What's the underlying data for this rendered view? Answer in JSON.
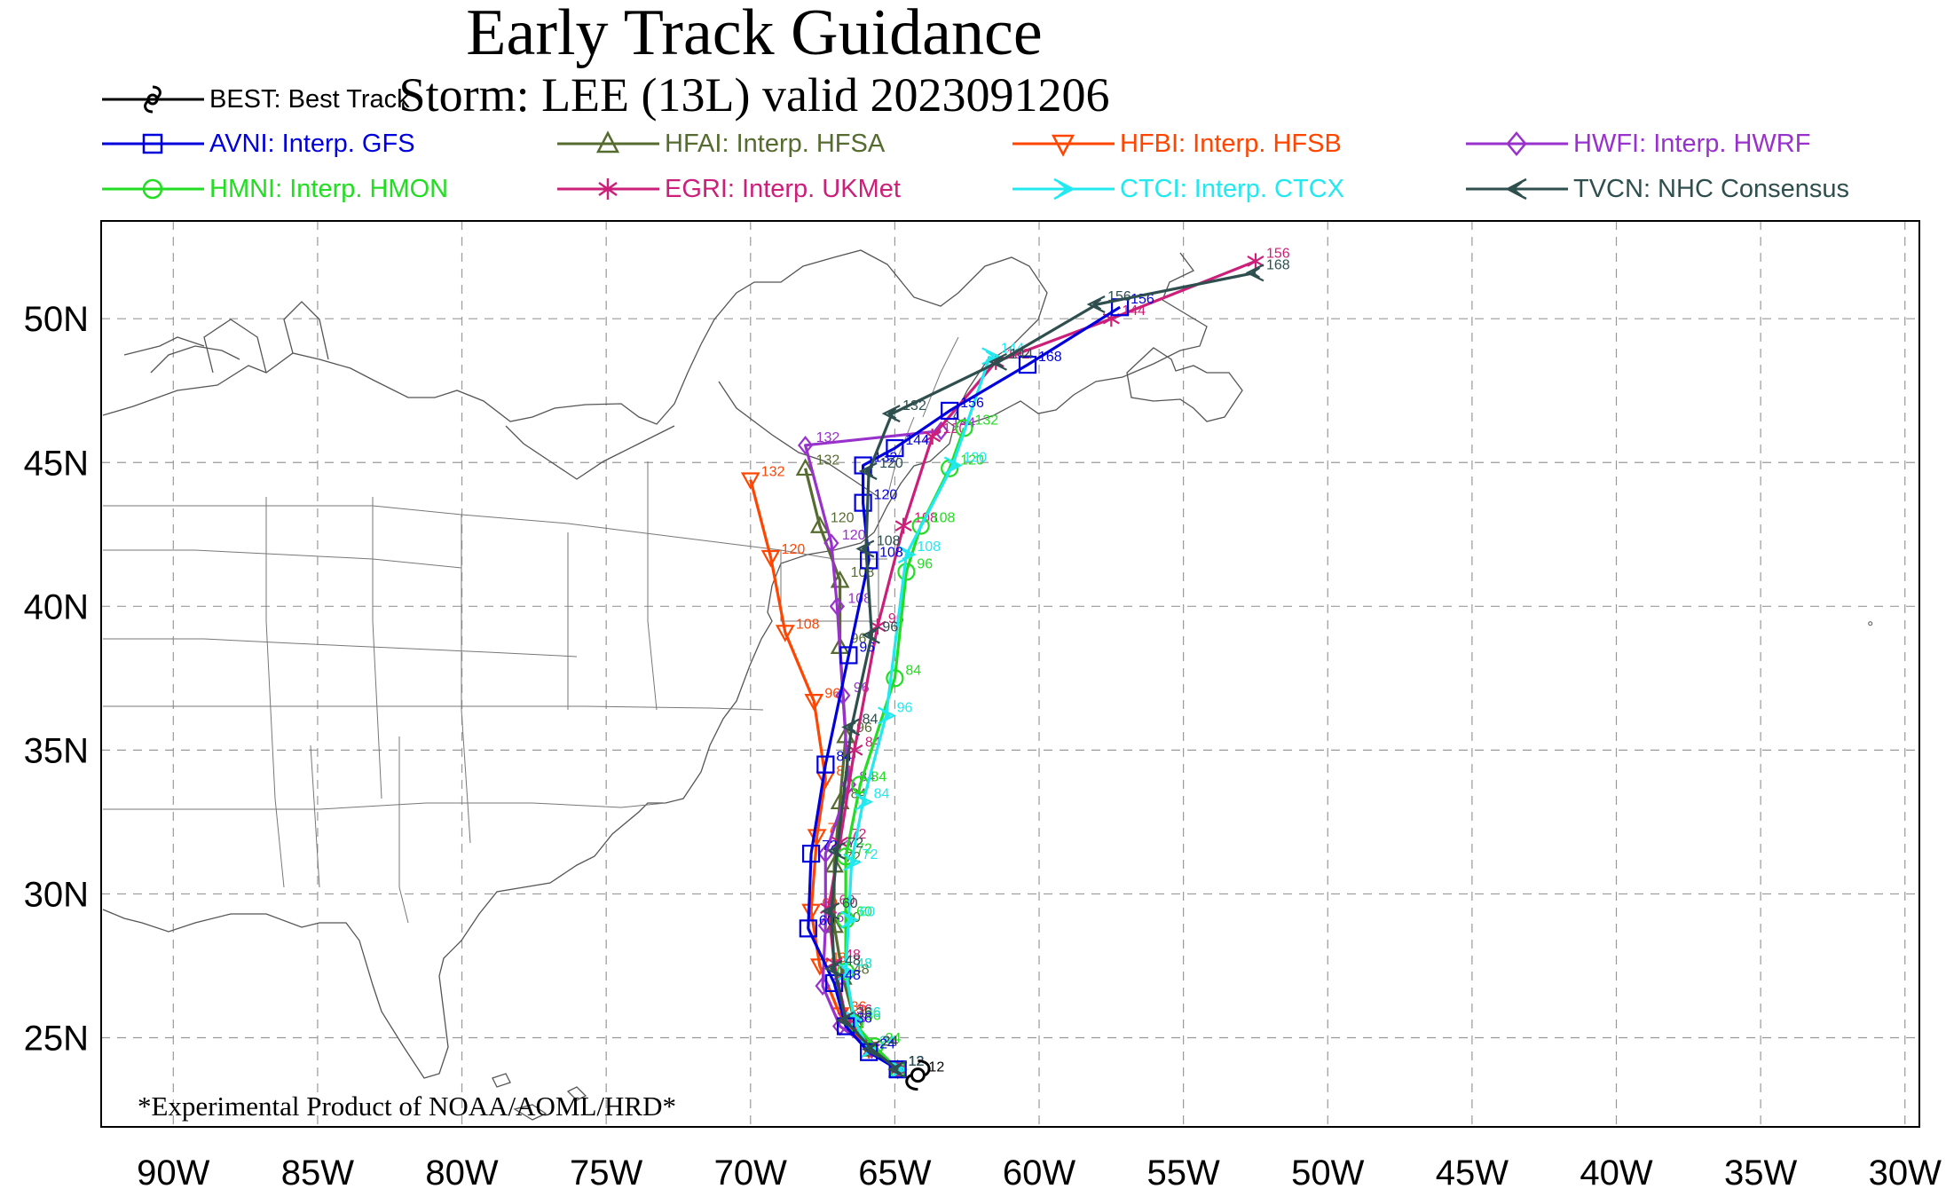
{
  "title": "Early Track Guidance",
  "subtitle": "Storm: LEE (13L) valid 2023091206",
  "footnote": "*Experimental Product of NOAA/AOML/HRD*",
  "colors": {
    "best": "#000000",
    "avni": "#0000dd",
    "hfai": "#556b2f",
    "hfbi": "#ff4500",
    "hwfi": "#9932cc",
    "hmni": "#22dd22",
    "egri": "#cc1f7a",
    "ctci": "#22e8f0",
    "tvcn": "#2f4f4f"
  },
  "legend": [
    {
      "id": "best",
      "label": "BEST: Best Track",
      "marker": "hurricane-icon"
    },
    {
      "id": "avni",
      "label": "AVNI: Interp. GFS",
      "marker": "square-icon"
    },
    {
      "id": "hfai",
      "label": "HFAI: Interp. HFSA",
      "marker": "triangle-up-icon"
    },
    {
      "id": "hfbi",
      "label": "HFBI: Interp. HFSB",
      "marker": "triangle-down-icon"
    },
    {
      "id": "hwfi",
      "label": "HWFI: Interp. HWRF",
      "marker": "diamond-icon"
    },
    {
      "id": "hmni",
      "label": "HMNI: Interp. HMON",
      "marker": "circle-icon"
    },
    {
      "id": "egri",
      "label": "EGRI: Interp. UKMet",
      "marker": "asterisk-icon"
    },
    {
      "id": "ctci",
      "label": "CTCI: Interp. CTCX",
      "marker": "arrow-right-icon"
    },
    {
      "id": "tvcn",
      "label": "TVCN: NHC Consensus",
      "marker": "arrow-left-icon"
    }
  ],
  "axes": {
    "lat_labels": [
      "25N",
      "30N",
      "35N",
      "40N",
      "45N",
      "50N"
    ],
    "lon_labels": [
      "90W",
      "85W",
      "80W",
      "75W",
      "70W",
      "65W",
      "60W",
      "55W",
      "50W",
      "45W",
      "40W",
      "35W",
      "30W"
    ],
    "lat_values": [
      25,
      30,
      35,
      40,
      45,
      50
    ],
    "lon_values": [
      -90,
      -85,
      -80,
      -75,
      -70,
      -65,
      -60,
      -55,
      -50,
      -45,
      -40,
      -35,
      -30
    ],
    "lon_range": [
      -92.5,
      -29.5
    ],
    "lat_range": [
      21.9,
      53.4
    ],
    "grid": "dashed"
  },
  "tracks": [
    {
      "id": "best",
      "points": [
        [
          -64.2,
          23.7,
          12
        ]
      ]
    },
    {
      "id": "avni",
      "points": [
        [
          -64.9,
          23.9,
          12
        ],
        [
          -65.9,
          24.5,
          24
        ],
        [
          -66.7,
          25.4,
          36
        ],
        [
          -67.1,
          26.9,
          48
        ],
        [
          -68.0,
          28.8,
          60
        ],
        [
          -67.9,
          31.4,
          72
        ],
        [
          -67.4,
          34.5,
          84
        ],
        [
          -66.6,
          38.3,
          96
        ],
        [
          -65.9,
          41.6,
          108
        ],
        [
          -66.1,
          43.6,
          120
        ],
        [
          -66.1,
          44.9,
          132
        ],
        [
          -65.0,
          45.5,
          144
        ],
        [
          -63.1,
          46.8,
          156
        ],
        [
          -60.4,
          48.4,
          168
        ],
        [
          -57.2,
          50.4,
          156
        ]
      ]
    },
    {
      "id": "hfai",
      "points": [
        [
          -64.9,
          23.9,
          12
        ],
        [
          -65.8,
          24.6,
          24
        ],
        [
          -66.4,
          25.6,
          36
        ],
        [
          -66.8,
          27.1,
          48
        ],
        [
          -67.1,
          28.9,
          60
        ],
        [
          -67.1,
          31.0,
          72
        ],
        [
          -66.9,
          33.2,
          84
        ],
        [
          -66.7,
          35.5,
          96
        ],
        [
          -66.9,
          38.6,
          96
        ],
        [
          -66.9,
          40.9,
          108
        ],
        [
          -67.6,
          42.8,
          120
        ],
        [
          -68.1,
          44.8,
          132
        ]
      ]
    },
    {
      "id": "hfbi",
      "points": [
        [
          -64.9,
          23.9,
          12
        ],
        [
          -65.9,
          24.6,
          24
        ],
        [
          -66.9,
          25.8,
          36
        ],
        [
          -67.6,
          27.5,
          48
        ],
        [
          -67.9,
          29.4,
          60
        ],
        [
          -67.7,
          32.0,
          72
        ],
        [
          -67.4,
          34.0,
          84
        ],
        [
          -67.8,
          36.7,
          96
        ],
        [
          -68.8,
          39.1,
          108
        ],
        [
          -69.3,
          41.7,
          120
        ],
        [
          -70.0,
          44.4,
          132
        ]
      ]
    },
    {
      "id": "hwfi",
      "points": [
        [
          -64.9,
          23.9,
          12
        ],
        [
          -65.8,
          24.6,
          24
        ],
        [
          -66.9,
          25.4,
          36
        ],
        [
          -67.5,
          26.8,
          48
        ],
        [
          -67.4,
          28.9,
          60
        ],
        [
          -67.4,
          31.4,
          72
        ],
        [
          -66.6,
          33.8,
          84
        ],
        [
          -66.8,
          36.9,
          96
        ],
        [
          -67.0,
          40.0,
          108
        ],
        [
          -67.2,
          42.2,
          120
        ],
        [
          -68.1,
          45.6,
          132
        ],
        [
          -63.4,
          46.1,
          144
        ]
      ]
    },
    {
      "id": "hmni",
      "points": [
        [
          -64.9,
          23.9,
          12
        ],
        [
          -65.7,
          24.7,
          24
        ],
        [
          -66.4,
          25.5,
          36
        ],
        [
          -66.7,
          27.3,
          48
        ],
        [
          -66.7,
          29.1,
          60
        ],
        [
          -66.7,
          31.3,
          72
        ],
        [
          -66.2,
          33.8,
          84
        ],
        [
          -65.0,
          37.5,
          84
        ],
        [
          -64.6,
          41.2,
          96
        ],
        [
          -64.1,
          42.8,
          108
        ],
        [
          -63.1,
          44.8,
          120
        ],
        [
          -62.6,
          46.2,
          132
        ]
      ]
    },
    {
      "id": "egri",
      "points": [
        [
          -64.9,
          23.9,
          12
        ],
        [
          -65.8,
          24.6,
          24
        ],
        [
          -66.7,
          25.7,
          36
        ],
        [
          -67.1,
          27.6,
          48
        ],
        [
          -67.3,
          29.5,
          60
        ],
        [
          -66.9,
          31.8,
          72
        ],
        [
          -66.4,
          35.0,
          84
        ],
        [
          -65.6,
          39.3,
          96
        ],
        [
          -64.7,
          42.8,
          108
        ],
        [
          -63.7,
          45.9,
          120
        ],
        [
          -61.5,
          48.5,
          132
        ],
        [
          -57.5,
          50.0,
          144
        ],
        [
          -52.5,
          52.0,
          156
        ]
      ]
    },
    {
      "id": "ctci",
      "points": [
        [
          -64.9,
          23.9,
          12
        ],
        [
          -65.9,
          24.6,
          24
        ],
        [
          -66.4,
          25.6,
          36
        ],
        [
          -66.7,
          27.3,
          48
        ],
        [
          -66.6,
          29.1,
          60
        ],
        [
          -66.5,
          31.1,
          72
        ],
        [
          -66.1,
          33.2,
          84
        ],
        [
          -65.3,
          36.2,
          96
        ],
        [
          -64.6,
          41.8,
          108
        ],
        [
          -63.0,
          44.9,
          120
        ],
        [
          -61.7,
          48.7,
          144
        ]
      ]
    },
    {
      "id": "tvcn",
      "points": [
        [
          -64.9,
          23.9,
          12
        ],
        [
          -65.8,
          24.6,
          24
        ],
        [
          -66.7,
          25.6,
          36
        ],
        [
          -67.1,
          27.4,
          48
        ],
        [
          -67.2,
          29.4,
          60
        ],
        [
          -67.0,
          31.5,
          72
        ],
        [
          -66.5,
          35.8,
          84
        ],
        [
          -65.8,
          39.0,
          96
        ],
        [
          -66.0,
          42.0,
          108
        ],
        [
          -65.9,
          44.7,
          120
        ],
        [
          -65.1,
          46.7,
          132
        ],
        [
          -61.4,
          48.5,
          144
        ],
        [
          -58.0,
          50.5,
          156
        ],
        [
          -52.5,
          51.6,
          168
        ]
      ]
    }
  ],
  "land_labels": []
}
